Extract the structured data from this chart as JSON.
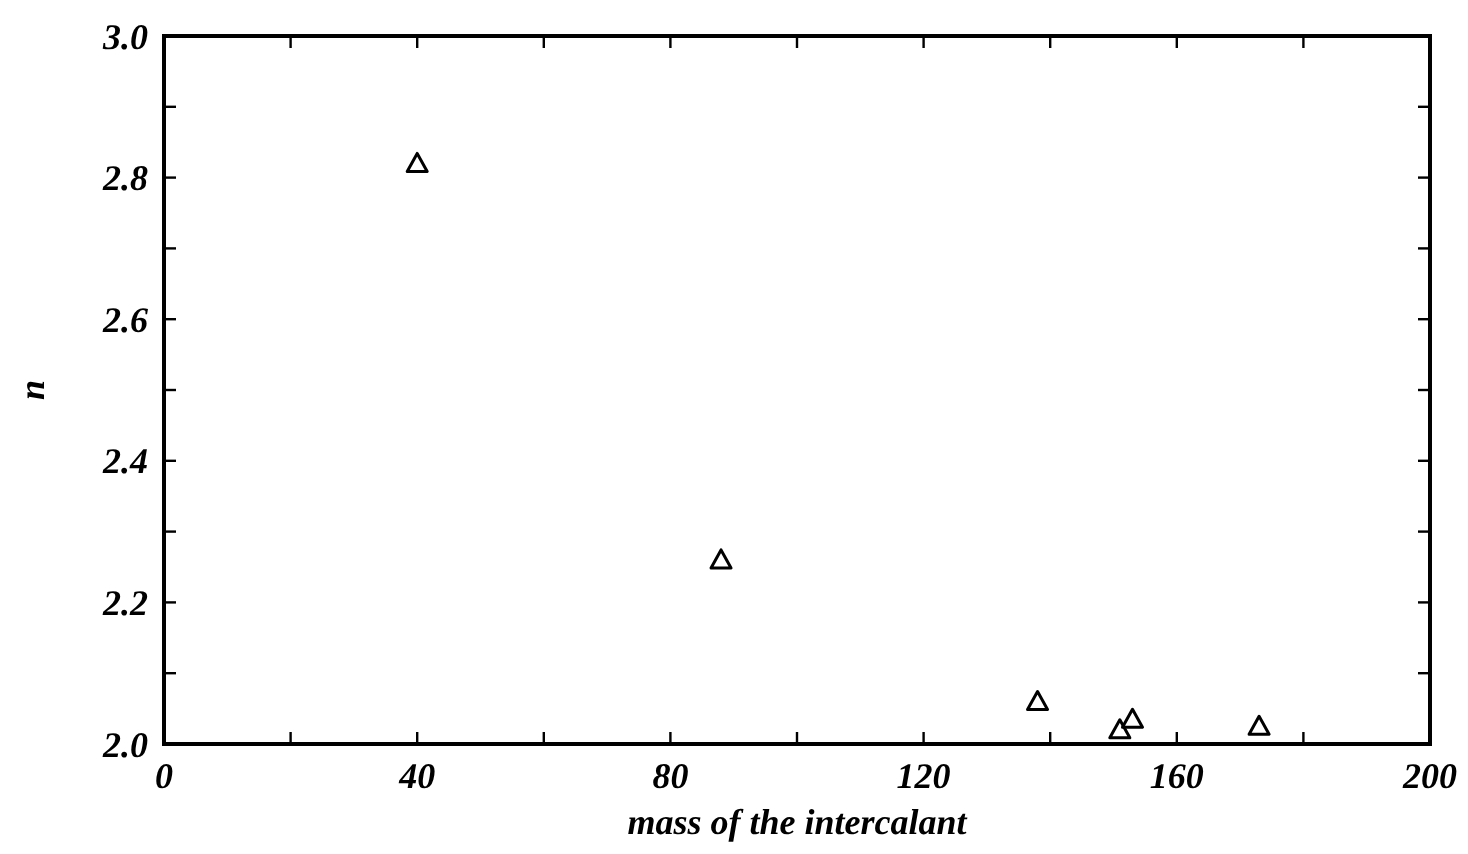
{
  "chart_data": {
    "type": "scatter",
    "xlabel": "mass of the intercalant",
    "ylabel": "n",
    "x": [
      40,
      88,
      138,
      151,
      153,
      173
    ],
    "series": [
      {
        "color": "#000000",
        "values": [
          2.82,
          2.26,
          2.06,
          2.02,
          2.035,
          2.025
        ]
      }
    ],
    "marker": "triangle",
    "grid": false,
    "xlim": [
      0,
      200
    ],
    "xticks": [
      0,
      {
        "value": 20,
        "label": null
      },
      40,
      {
        "value": 60,
        "label": null
      },
      80,
      {
        "value": 100,
        "label": null
      },
      120,
      {
        "value": 140,
        "label": null
      },
      160,
      {
        "value": 180,
        "label": null
      },
      200
    ],
    "ylim": [
      2.0,
      3.0
    ],
    "yticks": [
      {
        "value": 2.0,
        "label": "2.0"
      },
      {
        "value": 2.1,
        "label": null
      },
      2.2,
      {
        "value": 2.3,
        "label": null
      },
      2.4,
      {
        "value": 2.5,
        "label": null
      },
      2.6,
      {
        "value": 2.7,
        "label": null
      },
      2.8,
      {
        "value": 2.9,
        "label": null
      },
      {
        "value": 3.0,
        "label": "3.0"
      }
    ]
  }
}
